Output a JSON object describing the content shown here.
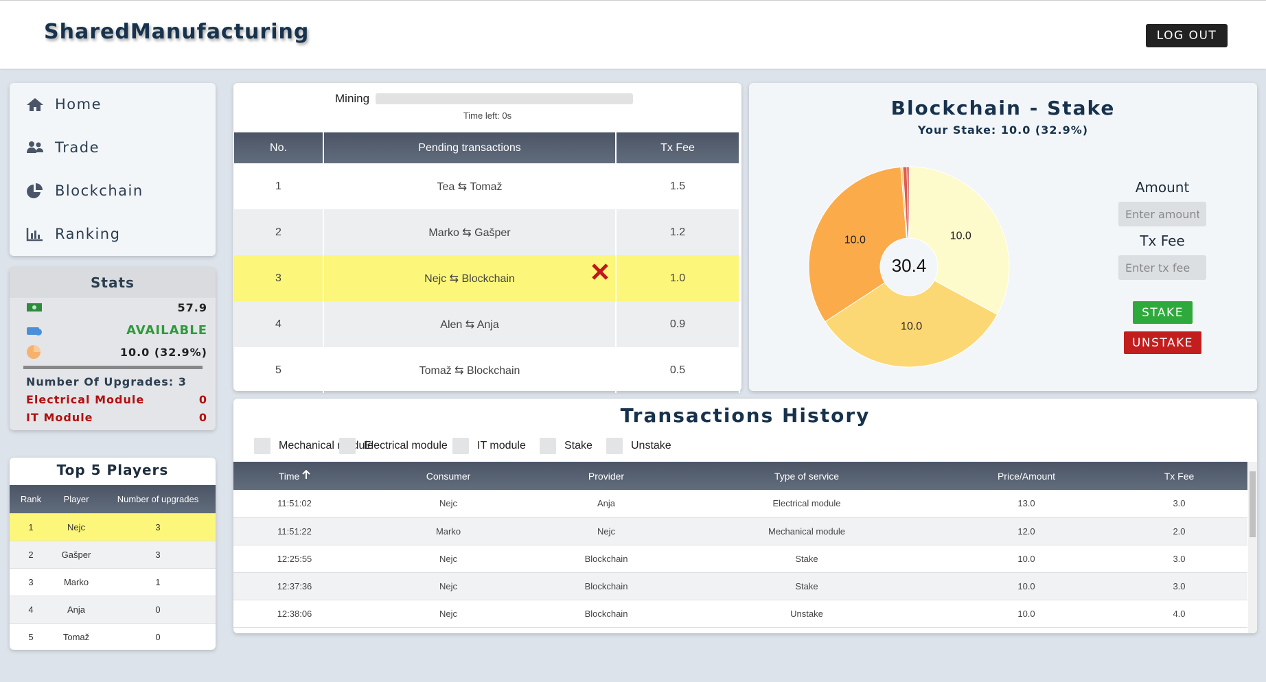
{
  "header": {
    "title": "SharedManufacturing",
    "logout": "LOG OUT"
  },
  "nav": [
    "Home",
    "Trade",
    "Blockchain",
    "Ranking"
  ],
  "stats": {
    "title": "Stats",
    "balance": "57.9",
    "status": "AVAILABLE",
    "stake": "10.0 (32.9%)",
    "upgrades": "Number Of Upgrades: 3",
    "modules": [
      {
        "name": "Electrical Module",
        "count": "0"
      },
      {
        "name": "IT Module",
        "count": "0"
      }
    ]
  },
  "top_players": {
    "title": "Top 5 Players",
    "columns": [
      "Rank",
      "Player",
      "Number of upgrades"
    ],
    "rows": [
      [
        "1",
        "Nejc",
        "3"
      ],
      [
        "2",
        "Gašper",
        "3"
      ],
      [
        "3",
        "Marko",
        "1"
      ],
      [
        "4",
        "Anja",
        "0"
      ],
      [
        "5",
        "Tomaž",
        "0"
      ]
    ]
  },
  "mining": {
    "label": "Mining",
    "time_left": "Time left: 0s"
  },
  "pending": {
    "columns": [
      "No.",
      "Pending transactions",
      "Tx Fee"
    ],
    "rows": [
      [
        "1",
        "Tea ⇆ Tomaž",
        "1.5"
      ],
      [
        "2",
        "Marko ⇆ Gašper",
        "1.2"
      ],
      [
        "3",
        "Nejc ⇆ Blockchain",
        "1.0"
      ],
      [
        "4",
        "Alen ⇆ Anja",
        "0.9"
      ],
      [
        "5",
        "Tomaž ⇆ Blockchain",
        "0.5"
      ]
    ]
  },
  "stake": {
    "title": "Blockchain - Stake",
    "subtitle": "Your Stake: 10.0 (32.9%)",
    "amount_label": "Amount",
    "amount_placeholder": "Enter amount",
    "fee_label": "Tx Fee",
    "fee_placeholder": "Enter tx fee",
    "stake_button": "STAKE",
    "unstake_button": "UNSTAKE"
  },
  "chart_data": {
    "type": "pie",
    "values": [
      10,
      10,
      10,
      0.1,
      0.2,
      0.1
    ],
    "value_labels": [
      "10.0",
      "10.0",
      "10.0",
      null,
      null,
      null
    ],
    "colors": [
      "#fdfbcb",
      "#fbd874",
      "#fbab49",
      "#f6cf8c",
      "#e25a4c",
      "#c62828"
    ],
    "center_label": 30.4
  },
  "history": {
    "title": "Transactions History",
    "filters": [
      "Mechanical module",
      "Electrical module",
      "IT module",
      "Stake",
      "Unstake"
    ],
    "columns": [
      "Time",
      "Consumer",
      "Provider",
      "Type of service",
      "Price/Amount",
      "Tx Fee"
    ],
    "rows": [
      [
        "11:51:02",
        "Nejc",
        "Anja",
        "Electrical module",
        "13.0",
        "3.0"
      ],
      [
        "11:51:22",
        "Marko",
        "Nejc",
        "Mechanical module",
        "12.0",
        "2.0"
      ],
      [
        "12:25:55",
        "Nejc",
        "Blockchain",
        "Stake",
        "10.0",
        "3.0"
      ],
      [
        "12:37:36",
        "Nejc",
        "Blockchain",
        "Stake",
        "10.0",
        "3.0"
      ],
      [
        "12:38:06",
        "Nejc",
        "Blockchain",
        "Unstake",
        "10.0",
        "4.0"
      ]
    ]
  }
}
